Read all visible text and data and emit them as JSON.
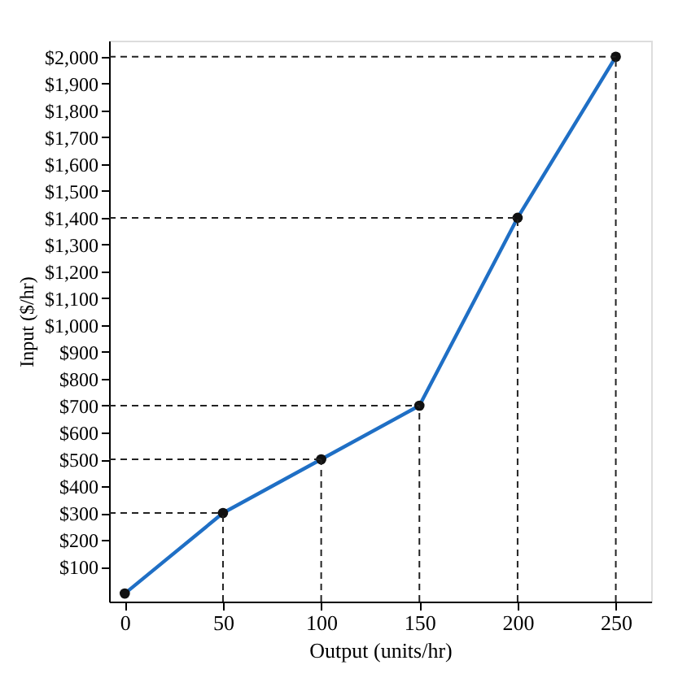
{
  "chart_data": {
    "type": "line",
    "xlabel": "Output (units/hr)",
    "ylabel": "Input ($/hr)",
    "x": [
      0,
      50,
      100,
      150,
      200,
      250
    ],
    "series": [
      {
        "color": "#1f6fc5",
        "values": [
          0,
          300,
          500,
          700,
          1400,
          2000
        ]
      }
    ],
    "marker": "circle",
    "line_style": "solid",
    "grid": false,
    "xlim": [
      -8,
      268
    ],
    "xticks": [
      0,
      50,
      100,
      150,
      200,
      250
    ],
    "ylim": [
      -30,
      2060
    ],
    "yticks": [
      {
        "value": 100,
        "label": "$100"
      },
      {
        "value": 200,
        "label": "$200"
      },
      {
        "value": 300,
        "label": "$300"
      },
      {
        "value": 400,
        "label": "$400"
      },
      {
        "value": 500,
        "label": "$500"
      },
      {
        "value": 600,
        "label": "$600"
      },
      {
        "value": 700,
        "label": "$700"
      },
      {
        "value": 800,
        "label": "$800"
      },
      {
        "value": 900,
        "label": "$900"
      },
      {
        "value": 1000,
        "label": "$1,000"
      },
      {
        "value": 1100,
        "label": "$1,100"
      },
      {
        "value": 1200,
        "label": "$1,200"
      },
      {
        "value": 1300,
        "label": "$1,300"
      },
      {
        "value": 1400,
        "label": "$1,400"
      },
      {
        "value": 1500,
        "label": "$1,500"
      },
      {
        "value": 1600,
        "label": "$1,600"
      },
      {
        "value": 1700,
        "label": "$1,700"
      },
      {
        "value": 1800,
        "label": "$1,800"
      },
      {
        "value": 1900,
        "label": "$1,900"
      },
      {
        "value": 2000,
        "label": "$2,000"
      }
    ],
    "ref_lines": [
      {
        "axis": "y",
        "value": 300,
        "line_style": "dashed"
      },
      {
        "axis": "y",
        "value": 500,
        "line_style": "dashed"
      },
      {
        "axis": "y",
        "value": 700,
        "line_style": "dashed"
      },
      {
        "axis": "y",
        "value": 1400,
        "line_style": "dashed"
      },
      {
        "axis": "y",
        "value": 2000,
        "line_style": "dashed"
      },
      {
        "axis": "x",
        "value": 50,
        "line_style": "dashed"
      },
      {
        "axis": "x",
        "value": 100,
        "line_style": "dashed"
      },
      {
        "axis": "x",
        "value": 150,
        "line_style": "dashed"
      },
      {
        "axis": "x",
        "value": 200,
        "line_style": "dashed"
      },
      {
        "axis": "x",
        "value": 250,
        "line_style": "dashed"
      }
    ]
  }
}
